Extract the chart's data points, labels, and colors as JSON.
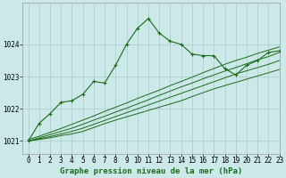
{
  "title": "Graphe pression niveau de la mer (hPa)",
  "background_color": "#cce8e8",
  "plot_bg_color": "#cce8e8",
  "grid_color": "#aacccc",
  "line_color": "#1a6b1a",
  "xlim": [
    -0.5,
    23
  ],
  "ylim": [
    1020.6,
    1025.3
  ],
  "yticks": [
    1021,
    1022,
    1023,
    1024
  ],
  "xticks": [
    0,
    1,
    2,
    3,
    4,
    5,
    6,
    7,
    8,
    9,
    10,
    11,
    12,
    13,
    14,
    15,
    16,
    17,
    18,
    19,
    20,
    21,
    22,
    23
  ],
  "tick_fontsize": 5.5,
  "xlabel_fontsize": 6.5,
  "main_series": [
    1021.0,
    1021.55,
    1021.85,
    1022.2,
    1022.25,
    1022.45,
    1022.85,
    1022.8,
    1023.35,
    1024.0,
    1024.5,
    1024.8,
    1024.35,
    1024.1,
    1024.0,
    1023.7,
    1023.65,
    1023.65,
    1023.25,
    1023.05,
    1023.35,
    1023.5,
    1023.75,
    1023.8
  ],
  "bundle_series": [
    [
      1021.0,
      1021.05,
      1021.1,
      1021.17,
      1021.22,
      1021.3,
      1021.42,
      1021.54,
      1021.65,
      1021.75,
      1021.85,
      1021.95,
      1022.05,
      1022.15,
      1022.25,
      1022.38,
      1022.5,
      1022.62,
      1022.72,
      1022.82,
      1022.92,
      1023.02,
      1023.12,
      1023.22
    ],
    [
      1021.0,
      1021.07,
      1021.14,
      1021.22,
      1021.3,
      1021.4,
      1021.52,
      1021.64,
      1021.76,
      1021.88,
      1022.0,
      1022.12,
      1022.24,
      1022.36,
      1022.48,
      1022.6,
      1022.72,
      1022.84,
      1022.96,
      1023.08,
      1023.18,
      1023.28,
      1023.38,
      1023.5
    ],
    [
      1021.0,
      1021.1,
      1021.2,
      1021.3,
      1021.4,
      1021.52,
      1021.65,
      1021.77,
      1021.9,
      1022.02,
      1022.15,
      1022.28,
      1022.42,
      1022.55,
      1022.68,
      1022.8,
      1022.93,
      1023.05,
      1023.17,
      1023.28,
      1023.4,
      1023.52,
      1023.62,
      1023.75
    ],
    [
      1021.05,
      1021.15,
      1021.27,
      1021.39,
      1021.52,
      1021.65,
      1021.78,
      1021.92,
      1022.05,
      1022.18,
      1022.32,
      1022.45,
      1022.58,
      1022.72,
      1022.85,
      1022.98,
      1023.12,
      1023.25,
      1023.38,
      1023.5,
      1023.6,
      1023.72,
      1023.82,
      1023.92
    ]
  ]
}
